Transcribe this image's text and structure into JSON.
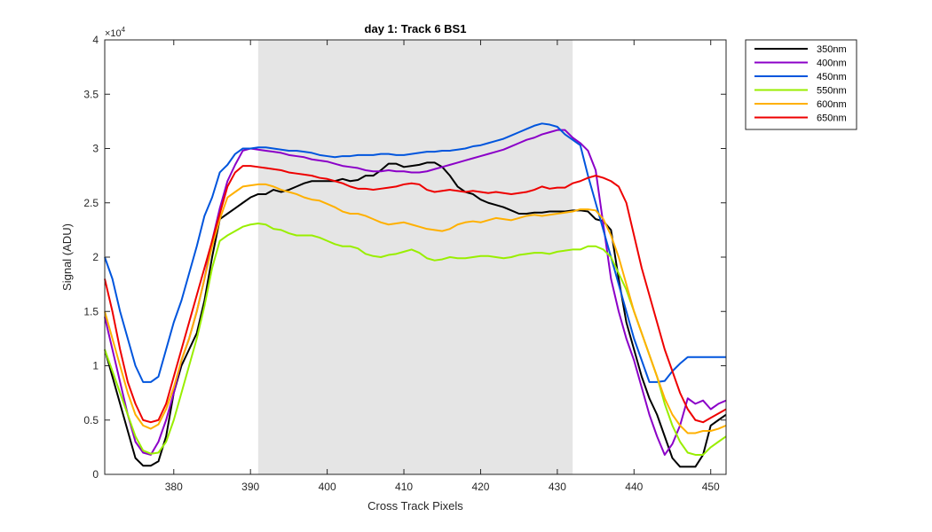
{
  "chart_data": {
    "type": "line",
    "title": "day 1: Track 6  BS1",
    "xlabel": "Cross Track Pixels",
    "ylabel": "Signal (ADU)",
    "y_exponent_label": "×10",
    "y_exponent_power": "4",
    "xlim": [
      371,
      452
    ],
    "ylim": [
      0,
      40000
    ],
    "x_ticks": [
      380,
      390,
      400,
      410,
      420,
      430,
      440,
      450
    ],
    "x_tick_labels": [
      "380",
      "390",
      "400",
      "410",
      "420",
      "430",
      "440",
      "450"
    ],
    "y_ticks": [
      0,
      5000,
      10000,
      15000,
      20000,
      25000,
      30000,
      35000,
      40000
    ],
    "y_tick_labels": [
      "0",
      "0.5",
      "1",
      "1.5",
      "2",
      "2.5",
      "3",
      "3.5",
      "4"
    ],
    "grid": false,
    "legend_position": "outside-top-right",
    "shaded_region": {
      "x_start": 391,
      "x_end": 432,
      "color": "#e5e5e5"
    },
    "x": [
      371,
      372,
      373,
      374,
      375,
      376,
      377,
      378,
      379,
      380,
      381,
      382,
      383,
      384,
      385,
      386,
      387,
      388,
      389,
      390,
      391,
      392,
      393,
      394,
      395,
      396,
      397,
      398,
      399,
      400,
      401,
      402,
      403,
      404,
      405,
      406,
      407,
      408,
      409,
      410,
      411,
      412,
      413,
      414,
      415,
      416,
      417,
      418,
      419,
      420,
      421,
      422,
      423,
      424,
      425,
      426,
      427,
      428,
      429,
      430,
      431,
      432,
      433,
      434,
      435,
      436,
      437,
      438,
      439,
      440,
      441,
      442,
      443,
      444,
      445,
      446,
      447,
      448,
      449,
      450,
      451,
      452
    ],
    "series": [
      {
        "name": "350nm",
        "color": "#000000",
        "values": [
          11500,
          9000,
          6500,
          4000,
          1500,
          800,
          800,
          1200,
          3500,
          7500,
          10000,
          11500,
          13000,
          16000,
          20000,
          23500,
          24000,
          24500,
          25000,
          25500,
          25800,
          25800,
          26200,
          26000,
          26200,
          26500,
          26800,
          27000,
          27000,
          27000,
          27000,
          27200,
          27000,
          27100,
          27500,
          27500,
          28000,
          28600,
          28600,
          28300,
          28400,
          28500,
          28700,
          28700,
          28300,
          27500,
          26500,
          26000,
          25800,
          25300,
          25000,
          24800,
          24600,
          24300,
          24000,
          24000,
          24100,
          24100,
          24200,
          24200,
          24200,
          24300,
          24300,
          24200,
          23500,
          23300,
          22500,
          18000,
          14000,
          11500,
          9000,
          7000,
          5500,
          3500,
          1500,
          700,
          700,
          700,
          1800,
          4500,
          5000,
          5500
        ]
      },
      {
        "name": "400nm",
        "color": "#8b00c8",
        "values": [
          14500,
          11500,
          8500,
          5500,
          3000,
          2000,
          1800,
          3000,
          5000,
          7500,
          10500,
          12500,
          15000,
          18000,
          21500,
          24500,
          27000,
          28500,
          29800,
          30000,
          29900,
          29800,
          29700,
          29600,
          29400,
          29300,
          29200,
          29000,
          28900,
          28800,
          28600,
          28400,
          28300,
          28200,
          28000,
          27900,
          27900,
          28000,
          27900,
          27900,
          27800,
          27800,
          27900,
          28100,
          28300,
          28500,
          28700,
          28900,
          29100,
          29300,
          29500,
          29700,
          29900,
          30200,
          30500,
          30800,
          31000,
          31300,
          31500,
          31700,
          31700,
          31000,
          30500,
          29800,
          28000,
          23000,
          18000,
          15000,
          12500,
          10500,
          8000,
          5500,
          3500,
          1800,
          2800,
          4500,
          7000,
          6500,
          6800,
          6000,
          6500,
          6800
        ]
      },
      {
        "name": "450nm",
        "color": "#0055dd",
        "values": [
          20000,
          18000,
          15000,
          12500,
          10000,
          8500,
          8500,
          9000,
          11500,
          14000,
          16000,
          18500,
          21000,
          23800,
          25500,
          27800,
          28500,
          29500,
          30000,
          30000,
          30100,
          30100,
          30000,
          29900,
          29800,
          29800,
          29700,
          29600,
          29400,
          29300,
          29200,
          29300,
          29300,
          29400,
          29400,
          29400,
          29500,
          29500,
          29400,
          29400,
          29500,
          29600,
          29700,
          29700,
          29800,
          29800,
          29900,
          30000,
          30200,
          30300,
          30500,
          30700,
          30900,
          31200,
          31500,
          31800,
          32100,
          32300,
          32200,
          32000,
          31300,
          30800,
          30300,
          27500,
          25000,
          22500,
          20000,
          17500,
          15000,
          12500,
          10500,
          8500,
          8500,
          8600,
          9500,
          10200,
          10800,
          10800,
          10800,
          10800,
          10800,
          10800
        ]
      },
      {
        "name": "550nm",
        "color": "#99ee00",
        "values": [
          11500,
          9500,
          7500,
          5500,
          3500,
          2200,
          1900,
          2000,
          3000,
          5000,
          7500,
          10000,
          12500,
          15500,
          19000,
          21500,
          22000,
          22400,
          22800,
          23000,
          23100,
          23000,
          22600,
          22500,
          22200,
          22000,
          22000,
          22000,
          21800,
          21500,
          21200,
          21000,
          21000,
          20800,
          20300,
          20100,
          20000,
          20200,
          20300,
          20500,
          20700,
          20400,
          19900,
          19700,
          19800,
          20000,
          19900,
          19900,
          20000,
          20100,
          20100,
          20000,
          19900,
          20000,
          20200,
          20300,
          20400,
          20400,
          20300,
          20500,
          20600,
          20700,
          20700,
          21000,
          21000,
          20700,
          20000,
          18500,
          17000,
          15000,
          13000,
          11000,
          9000,
          6500,
          4500,
          3000,
          2000,
          1800,
          1800,
          2500,
          3000,
          3500
        ]
      },
      {
        "name": "600nm",
        "color": "#ffb000",
        "values": [
          15000,
          12500,
          10000,
          7500,
          5500,
          4500,
          4200,
          4600,
          6000,
          8000,
          10500,
          12500,
          15000,
          18000,
          21000,
          23500,
          25500,
          26000,
          26500,
          26600,
          26700,
          26700,
          26500,
          26200,
          26000,
          25800,
          25500,
          25300,
          25200,
          24900,
          24600,
          24200,
          24000,
          24000,
          23800,
          23500,
          23200,
          23000,
          23100,
          23200,
          23000,
          22800,
          22600,
          22500,
          22400,
          22600,
          23000,
          23200,
          23300,
          23200,
          23400,
          23600,
          23500,
          23400,
          23600,
          23800,
          23900,
          23800,
          23900,
          24000,
          24100,
          24200,
          24400,
          24400,
          24300,
          23500,
          22000,
          20000,
          17500,
          15000,
          13000,
          11000,
          9000,
          7000,
          5500,
          4500,
          3800,
          3800,
          4000,
          4000,
          4200,
          4500
        ]
      },
      {
        "name": "650nm",
        "color": "#ee0000",
        "values": [
          18000,
          15000,
          11500,
          8500,
          6500,
          5000,
          4800,
          5000,
          6500,
          9000,
          11500,
          14000,
          16500,
          19000,
          21500,
          24000,
          26500,
          27800,
          28400,
          28400,
          28300,
          28200,
          28100,
          28000,
          27800,
          27700,
          27600,
          27500,
          27300,
          27200,
          27000,
          26800,
          26500,
          26300,
          26300,
          26200,
          26300,
          26400,
          26500,
          26700,
          26800,
          26700,
          26200,
          26000,
          26100,
          26200,
          26100,
          26000,
          26100,
          26000,
          25900,
          26000,
          25900,
          25800,
          25900,
          26000,
          26200,
          26500,
          26300,
          26400,
          26400,
          26800,
          27000,
          27300,
          27500,
          27300,
          27000,
          26500,
          25000,
          22000,
          19000,
          16500,
          14000,
          11500,
          9500,
          7500,
          6000,
          5000,
          4800,
          5200,
          5600,
          6000
        ]
      }
    ]
  }
}
